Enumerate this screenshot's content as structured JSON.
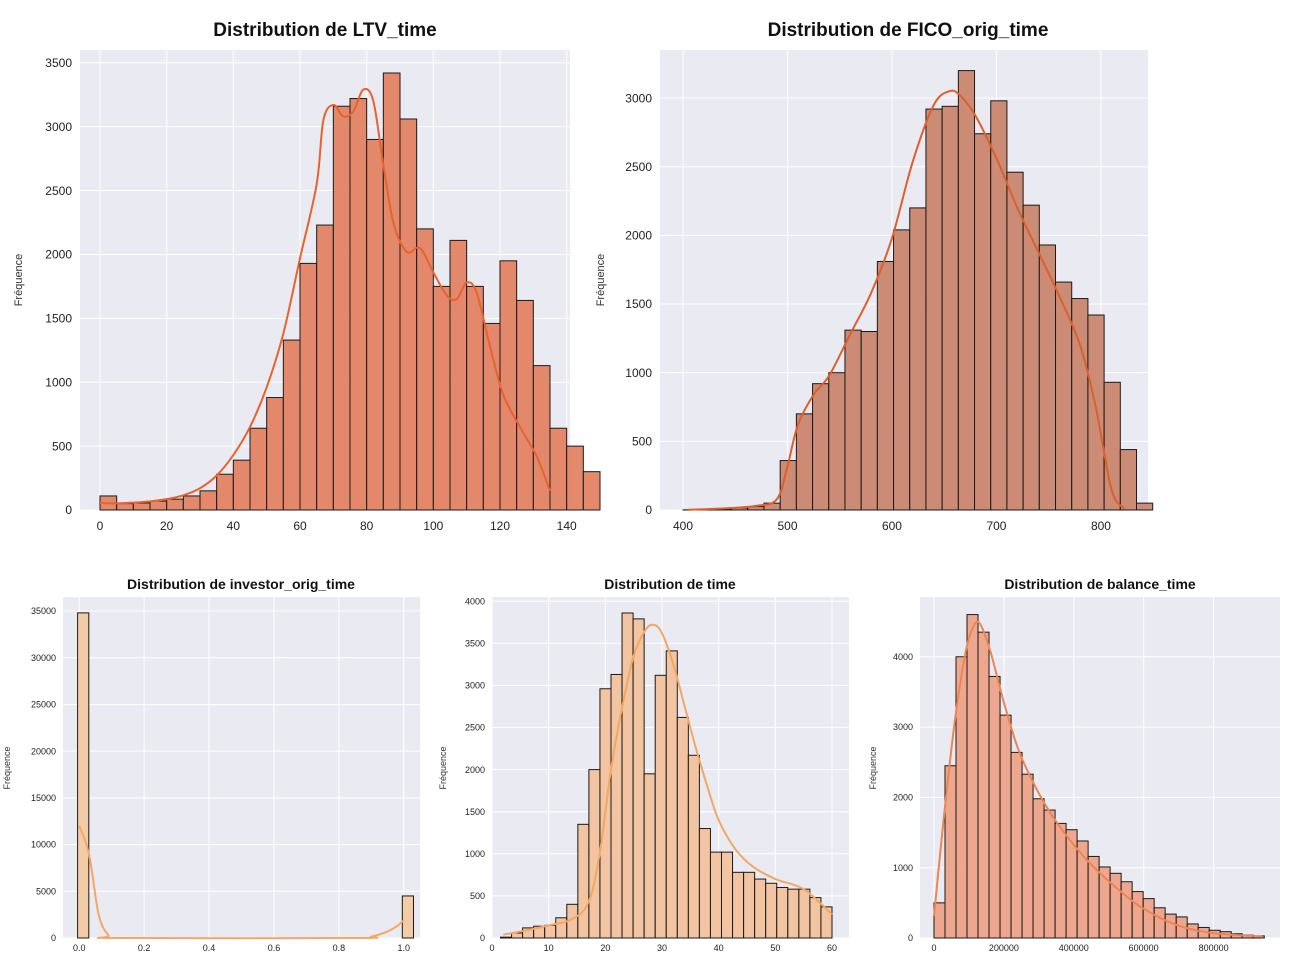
{
  "colors": {
    "background": "#eaeaf2",
    "grid": "#ffffff",
    "bar_edge": "#1a1a1a"
  },
  "chart_data": [
    {
      "type": "bar",
      "title": "Distribution de LTV_time",
      "ylabel": "Fréquence",
      "xlabel": "",
      "xlim": [
        -6,
        141
      ],
      "ylim": [
        0,
        3600
      ],
      "xticks": [
        0,
        20,
        40,
        60,
        80,
        100,
        120,
        140
      ],
      "yticks": [
        0,
        500,
        1000,
        1500,
        2000,
        2500,
        3000,
        3500
      ],
      "bin_start": 0,
      "bin_width": 5,
      "values": [
        110,
        50,
        55,
        70,
        85,
        110,
        150,
        280,
        390,
        640,
        880,
        1330,
        1930,
        2230,
        3160,
        3220,
        2900,
        3420,
        3060,
        2200,
        1750,
        2110,
        1750,
        1460,
        1950,
        1640,
        1130,
        640,
        500,
        300
      ],
      "kde": [
        [
          0,
          55
        ],
        [
          5,
          52
        ],
        [
          10,
          58
        ],
        [
          15,
          68
        ],
        [
          20,
          85
        ],
        [
          25,
          115
        ],
        [
          30,
          170
        ],
        [
          35,
          270
        ],
        [
          40,
          430
        ],
        [
          45,
          650
        ],
        [
          50,
          960
        ],
        [
          55,
          1380
        ],
        [
          60,
          1970
        ],
        [
          65,
          2550
        ],
        [
          67,
          3050
        ],
        [
          70,
          3170
        ],
        [
          73,
          3080
        ],
        [
          76,
          3120
        ],
        [
          79,
          3290
        ],
        [
          82,
          3200
        ],
        [
          85,
          2700
        ],
        [
          88,
          2250
        ],
        [
          92,
          2020
        ],
        [
          96,
          2050
        ],
        [
          100,
          1860
        ],
        [
          104,
          1680
        ],
        [
          107,
          1650
        ],
        [
          110,
          1780
        ],
        [
          113,
          1700
        ],
        [
          117,
          1280
        ],
        [
          121,
          900
        ],
        [
          126,
          650
        ],
        [
          131,
          420
        ],
        [
          135,
          150
        ]
      ],
      "bar_color": "#e27f5f",
      "line_color": "#e8622c",
      "grid": true,
      "legend": "none"
    },
    {
      "type": "bar",
      "title": "Distribution de FICO_orig_time",
      "ylabel": "Fréquence",
      "xlabel": "",
      "xlim": [
        378,
        845
      ],
      "ylim": [
        0,
        3350
      ],
      "xticks": [
        400,
        500,
        600,
        700,
        800
      ],
      "yticks": [
        0,
        500,
        1000,
        1500,
        2000,
        2500,
        3000
      ],
      "bin_start": 400,
      "bin_width": 15.5,
      "values": [
        1,
        2,
        5,
        15,
        25,
        50,
        360,
        700,
        920,
        1000,
        1310,
        1300,
        1810,
        2040,
        2200,
        2920,
        2940,
        3200,
        2740,
        2980,
        2460,
        2220,
        1930,
        1660,
        1540,
        1420,
        930,
        440,
        50
      ],
      "kde": [
        [
          405,
          2
        ],
        [
          440,
          12
        ],
        [
          470,
          30
        ],
        [
          490,
          80
        ],
        [
          500,
          320
        ],
        [
          510,
          620
        ],
        [
          525,
          840
        ],
        [
          540,
          980
        ],
        [
          560,
          1280
        ],
        [
          580,
          1580
        ],
        [
          600,
          1980
        ],
        [
          620,
          2540
        ],
        [
          640,
          2950
        ],
        [
          655,
          3050
        ],
        [
          665,
          3020
        ],
        [
          680,
          2870
        ],
        [
          700,
          2560
        ],
        [
          720,
          2200
        ],
        [
          740,
          1880
        ],
        [
          760,
          1560
        ],
        [
          780,
          1200
        ],
        [
          795,
          750
        ],
        [
          810,
          150
        ],
        [
          822,
          10
        ]
      ],
      "bar_color": "#c8826a",
      "line_color": "#dd5f2c",
      "grid": true,
      "legend": "none"
    },
    {
      "type": "bar",
      "title": "Distribution de investor_orig_time",
      "ylabel": "Fréquence",
      "xlabel": "",
      "xlim": [
        -0.05,
        1.05
      ],
      "ylim": [
        0,
        36500
      ],
      "xticks": [
        "0.0",
        "0.2",
        "0.4",
        "0.6",
        "0.8",
        "1.0"
      ],
      "yticks": [
        0,
        5000,
        10000,
        15000,
        20000,
        25000,
        30000,
        35000
      ],
      "bin_start": -0.005,
      "bin_width": 0.0345,
      "values": [
        34800,
        0,
        0,
        0,
        0,
        0,
        0,
        0,
        0,
        0,
        0,
        0,
        0,
        0,
        0,
        0,
        0,
        0,
        0,
        0,
        0,
        0,
        0,
        0,
        0,
        0,
        0,
        0,
        0,
        4500
      ],
      "kde": [
        [
          0.0,
          12000
        ],
        [
          0.03,
          9000
        ],
        [
          0.06,
          2500
        ],
        [
          0.09,
          300
        ],
        [
          0.12,
          0
        ],
        [
          0.85,
          0
        ],
        [
          0.9,
          150
        ],
        [
          0.95,
          700
        ],
        [
          0.98,
          1300
        ],
        [
          1.0,
          1900
        ]
      ],
      "bar_color": "#f2c9a0",
      "line_color": "#f4a766",
      "grid": true,
      "legend": "none"
    },
    {
      "type": "bar",
      "title": "Distribution de time",
      "ylabel": "Fréquence",
      "xlabel": "",
      "xlim": [
        0,
        63
      ],
      "ylim": [
        0,
        4050
      ],
      "xticks": [
        0,
        10,
        20,
        30,
        40,
        50,
        60
      ],
      "yticks": [
        0,
        500,
        1000,
        1500,
        2000,
        2500,
        3000,
        3500,
        4000
      ],
      "bin_start": 1.5,
      "bin_width": 1.95,
      "values": [
        10,
        60,
        120,
        140,
        150,
        240,
        400,
        1350,
        2000,
        2960,
        3130,
        3860,
        3790,
        1950,
        3120,
        3410,
        2620,
        2170,
        1300,
        1020,
        1020,
        780,
        780,
        700,
        650,
        600,
        580,
        580,
        480,
        370
      ],
      "kde": [
        [
          2,
          40
        ],
        [
          6,
          90
        ],
        [
          10,
          150
        ],
        [
          14,
          220
        ],
        [
          17,
          420
        ],
        [
          19,
          1000
        ],
        [
          21,
          2000
        ],
        [
          23,
          2750
        ],
        [
          25,
          3350
        ],
        [
          27,
          3650
        ],
        [
          28.5,
          3720
        ],
        [
          30,
          3620
        ],
        [
          32,
          3250
        ],
        [
          34,
          2750
        ],
        [
          36,
          2250
        ],
        [
          38,
          1800
        ],
        [
          40,
          1400
        ],
        [
          43,
          1050
        ],
        [
          46,
          850
        ],
        [
          50,
          700
        ],
        [
          55,
          580
        ],
        [
          60,
          280
        ]
      ],
      "bar_color": "#f2c09a",
      "line_color": "#f2a860",
      "grid": true,
      "legend": "none"
    },
    {
      "type": "bar",
      "title": "Distribution de balance_time",
      "ylabel": "Fréquence",
      "xlabel": "",
      "xlim": [
        -40000,
        990000
      ],
      "ylim": [
        0,
        4850
      ],
      "xticks": [
        0,
        200000,
        400000,
        600000,
        800000
      ],
      "yticks": [
        0,
        1000,
        2000,
        3000,
        4000
      ],
      "bin_start": 0,
      "bin_width": 31500,
      "values": [
        500,
        2450,
        4000,
        4600,
        4350,
        3720,
        3170,
        2640,
        2330,
        1980,
        1820,
        1630,
        1540,
        1380,
        1160,
        1010,
        920,
        800,
        660,
        560,
        430,
        340,
        300,
        200,
        150,
        110,
        90,
        60,
        40,
        30
      ],
      "kde": [
        [
          0,
          310
        ],
        [
          30000,
          1800
        ],
        [
          60000,
          3100
        ],
        [
          90000,
          4050
        ],
        [
          110000,
          4400
        ],
        [
          130000,
          4480
        ],
        [
          160000,
          4100
        ],
        [
          200000,
          3350
        ],
        [
          240000,
          2700
        ],
        [
          280000,
          2250
        ],
        [
          330000,
          1800
        ],
        [
          380000,
          1450
        ],
        [
          430000,
          1150
        ],
        [
          480000,
          900
        ],
        [
          530000,
          680
        ],
        [
          580000,
          480
        ],
        [
          630000,
          330
        ],
        [
          680000,
          210
        ],
        [
          740000,
          120
        ],
        [
          800000,
          70
        ],
        [
          870000,
          40
        ],
        [
          940000,
          20
        ]
      ],
      "bar_color": "#eea187",
      "line_color": "#ee8453",
      "grid": true,
      "legend": "none"
    }
  ]
}
